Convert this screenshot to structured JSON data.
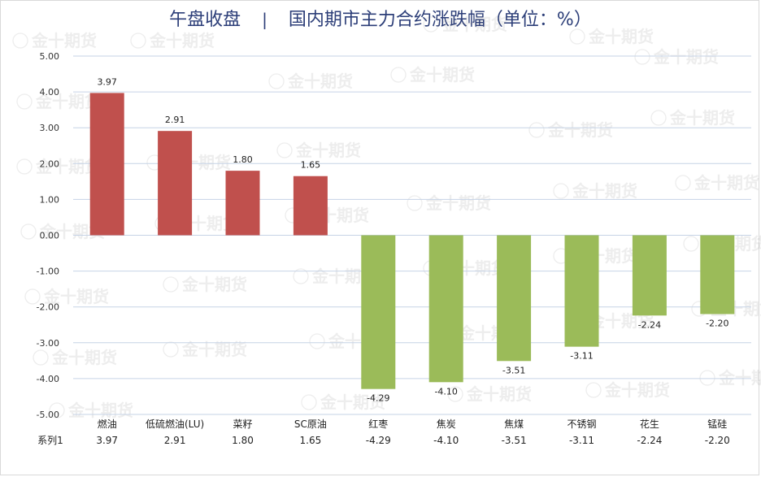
{
  "title": {
    "left": "午盘收盘",
    "separator": "|",
    "right": "国内期市主力合约涨跌幅（单位：%）"
  },
  "colors": {
    "positive": "#c0504d",
    "negative": "#9bbb59",
    "grid": "#c6d3e6",
    "title": "#2c3e78"
  },
  "chart_data": {
    "type": "bar",
    "categories": [
      "燃油",
      "低硫燃油(LU)",
      "菜籽",
      "SC原油",
      "红枣",
      "焦炭",
      "焦煤",
      "不锈钢",
      "花生",
      "锰硅"
    ],
    "series": [
      {
        "name": "系列1",
        "values": [
          3.97,
          2.91,
          1.8,
          1.65,
          -4.29,
          -4.1,
          -3.51,
          -3.11,
          -2.24,
          -2.2
        ]
      }
    ],
    "value_labels": [
      "3.97",
      "2.91",
      "1.80",
      "1.65",
      "-4.29",
      "-4.10",
      "-3.51",
      "-3.11",
      "-2.24",
      "-2.20"
    ],
    "yticks": [
      "5.00",
      "4.00",
      "3.00",
      "2.00",
      "1.00",
      "0.00",
      "-1.00",
      "-2.00",
      "-3.00",
      "-4.00",
      "-5.00"
    ],
    "ylim": [
      -5,
      5
    ],
    "grid": true,
    "legend": "data table below chart",
    "watermark": "金十期货"
  }
}
